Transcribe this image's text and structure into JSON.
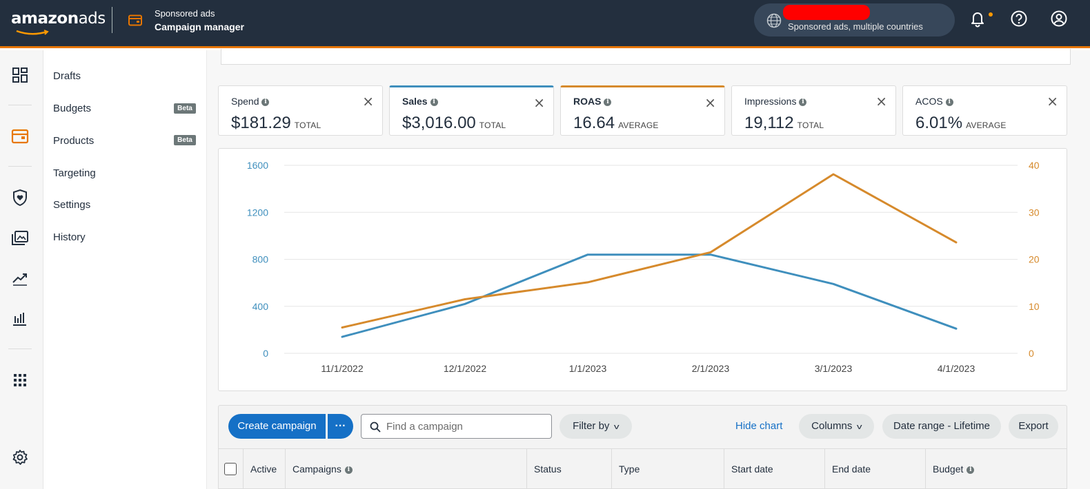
{
  "header": {
    "logo": {
      "part1": "amazon",
      "part2": "ads"
    },
    "product_subtitle": "Sponsored ads",
    "product_title": "Campaign manager",
    "account_text": "Sponsored ads, multiple countries",
    "icons": [
      "globe-icon",
      "bell-icon",
      "help-icon",
      "profile-icon"
    ],
    "accent_color": "#e77600",
    "bar_color": "#232f3e"
  },
  "rail": {
    "icons": [
      "dashboard-icon",
      "campaign-manager-icon",
      "brand-shield-icon",
      "creative-assets-icon",
      "trend-icon",
      "reports-icon",
      "apps-grid-icon",
      "settings-gear-icon"
    ]
  },
  "subnav": {
    "items": [
      {
        "label": "Drafts",
        "badge": ""
      },
      {
        "label": "Budgets",
        "badge": "Beta"
      },
      {
        "label": "Products",
        "badge": "Beta"
      },
      {
        "label": "Targeting",
        "badge": ""
      },
      {
        "label": "Settings",
        "badge": ""
      },
      {
        "label": "History",
        "badge": ""
      }
    ]
  },
  "metrics": [
    {
      "label": "Spend",
      "value": "$181.29",
      "unit": "TOTAL",
      "selected": false
    },
    {
      "label": "Sales",
      "value": "$3,016.00",
      "unit": "TOTAL",
      "selected": true,
      "color": "#3f8fbd"
    },
    {
      "label": "ROAS",
      "value": "16.64",
      "unit": "AVERAGE",
      "selected": true,
      "color": "#d68a2c"
    },
    {
      "label": "Impressions",
      "value": "19,112",
      "unit": "TOTAL",
      "selected": false
    },
    {
      "label": "ACOS",
      "value": "6.01%",
      "unit": "AVERAGE",
      "selected": false
    }
  ],
  "chart_data": {
    "type": "line",
    "x": [
      "11/1/2022",
      "12/1/2022",
      "1/1/2023",
      "2/1/2023",
      "3/1/2023",
      "4/1/2023"
    ],
    "series": [
      {
        "name": "Sales",
        "axis": "left",
        "color": "#3f8fbd",
        "values": [
          140,
          420,
          840,
          840,
          590,
          210
        ]
      },
      {
        "name": "ROAS",
        "axis": "right",
        "color": "#d68a2c",
        "values": [
          5.5,
          11.5,
          15.1,
          21.5,
          38.1,
          23.6
        ]
      }
    ],
    "y_left": {
      "ticks": [
        0,
        400,
        800,
        1200,
        1600
      ],
      "range": [
        0,
        1600
      ],
      "color": "#3f8fbd"
    },
    "y_right": {
      "ticks": [
        0,
        10,
        20,
        30,
        40
      ],
      "range": [
        0,
        40
      ],
      "color": "#d68a2c"
    },
    "grid": true,
    "title": "",
    "xlabel": "",
    "ylabel": ""
  },
  "toolbar": {
    "create_label": "Create campaign",
    "more_label": "···",
    "search_placeholder": "Find a campaign",
    "filter_label": "Filter by",
    "hide_chart_label": "Hide chart",
    "columns_label": "Columns",
    "date_range_label": "Date range - Lifetime",
    "export_label": "Export"
  },
  "table": {
    "columns": [
      {
        "label": "Active",
        "info": false
      },
      {
        "label": "Campaigns",
        "info": true
      },
      {
        "label": "Status",
        "info": false
      },
      {
        "label": "Type",
        "info": false
      },
      {
        "label": "Start date",
        "info": false
      },
      {
        "label": "End date",
        "info": false
      },
      {
        "label": "Budget",
        "info": true
      }
    ]
  }
}
